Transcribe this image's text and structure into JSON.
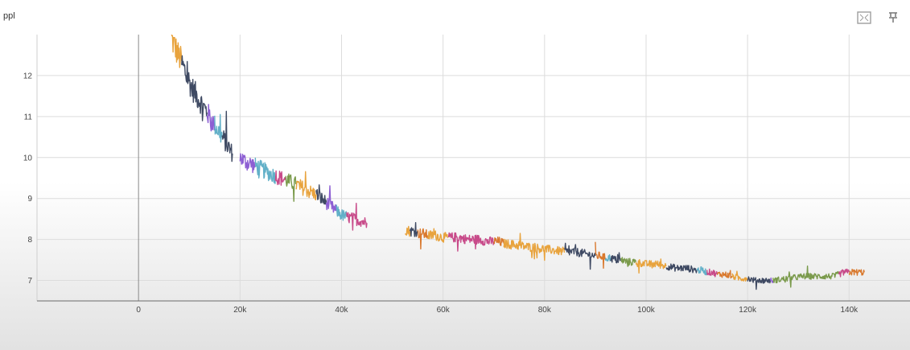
{
  "toolbar": {
    "fit_icon": "fit-domain-icon",
    "pin_icon": "pin-icon"
  },
  "chart_data": {
    "type": "line",
    "title": "ppl",
    "xlabel": "",
    "ylabel": "",
    "xlim": [
      -20000,
      152000
    ],
    "ylim": [
      6.5,
      13.0
    ],
    "grid": true,
    "x_ticks": [
      0,
      20000,
      40000,
      60000,
      80000,
      100000,
      120000,
      140000
    ],
    "x_tick_labels": [
      "0",
      "20k",
      "40k",
      "60k",
      "80k",
      "100k",
      "120k",
      "140k"
    ],
    "y_ticks": [
      7,
      8,
      9,
      10,
      11,
      12
    ],
    "y_tick_labels": [
      "7",
      "8",
      "9",
      "10",
      "11",
      "12"
    ],
    "series": [
      {
        "color": "#e8a33d",
        "x": [
          6500,
          7000,
          7500,
          8000,
          8500
        ],
        "y": [
          12.9,
          12.75,
          12.6,
          12.45,
          12.35
        ]
      },
      {
        "color": "#3f4a63",
        "x": [
          8500,
          9500,
          10500,
          11500,
          12500,
          13500
        ],
        "y": [
          12.3,
          12.0,
          11.7,
          11.5,
          11.3,
          11.1
        ]
      },
      {
        "color": "#8d5fd3",
        "x": [
          13500,
          14000,
          14500,
          15000
        ],
        "y": [
          11.1,
          11.0,
          10.9,
          10.8
        ]
      },
      {
        "color": "#62b0c8",
        "x": [
          15000,
          15500,
          16000,
          16500
        ],
        "y": [
          10.8,
          10.7,
          10.6,
          10.5
        ]
      },
      {
        "color": "#3f4a63",
        "x": [
          16500,
          17500,
          18500
        ],
        "y": [
          10.5,
          10.3,
          10.1
        ]
      },
      {
        "color": "#8d5fd3",
        "x": [
          20000,
          21000,
          22000,
          23000
        ],
        "y": [
          10.0,
          9.9,
          9.85,
          9.8
        ]
      },
      {
        "color": "#62b0c8",
        "x": [
          23000,
          24500,
          26000,
          27000
        ],
        "y": [
          9.8,
          9.7,
          9.6,
          9.55
        ]
      },
      {
        "color": "#c84b8a",
        "x": [
          27000,
          28000,
          29000
        ],
        "y": [
          9.55,
          9.5,
          9.45
        ]
      },
      {
        "color": "#7a9a4b",
        "x": [
          29000,
          30000,
          31000
        ],
        "y": [
          9.45,
          9.4,
          9.35
        ]
      },
      {
        "color": "#e8a33d",
        "x": [
          31000,
          32500,
          34000,
          35000
        ],
        "y": [
          9.35,
          9.25,
          9.15,
          9.1
        ]
      },
      {
        "color": "#3f4a63",
        "x": [
          35000,
          36000,
          37000
        ],
        "y": [
          9.1,
          9.0,
          8.9
        ]
      },
      {
        "color": "#8d5fd3",
        "x": [
          37000,
          38000,
          39000
        ],
        "y": [
          8.9,
          8.8,
          8.7
        ]
      },
      {
        "color": "#62b0c8",
        "x": [
          39000,
          40000,
          41000
        ],
        "y": [
          8.7,
          8.6,
          8.55
        ]
      },
      {
        "color": "#c84b8a",
        "x": [
          41000,
          42500,
          44000,
          45000
        ],
        "y": [
          8.55,
          8.5,
          8.45,
          8.4
        ]
      },
      {
        "color": "#e8a33d",
        "x": [
          52500,
          53500
        ],
        "y": [
          8.25,
          8.2
        ]
      },
      {
        "color": "#3f4a63",
        "x": [
          53500,
          54500,
          55000
        ],
        "y": [
          8.2,
          8.2,
          8.2
        ]
      },
      {
        "color": "#d9792e",
        "x": [
          55000,
          56000,
          57000
        ],
        "y": [
          8.15,
          8.15,
          8.1
        ]
      },
      {
        "color": "#e8a33d",
        "x": [
          57000,
          58500,
          60000,
          61000
        ],
        "y": [
          8.1,
          8.1,
          8.05,
          8.05
        ]
      },
      {
        "color": "#c84b8a",
        "x": [
          61000,
          63000,
          65000,
          67000,
          69000,
          70000
        ],
        "y": [
          8.05,
          8.05,
          8.0,
          8.0,
          7.95,
          7.95
        ]
      },
      {
        "color": "#d9792e",
        "x": [
          70000,
          71000,
          72000
        ],
        "y": [
          7.95,
          7.95,
          7.9
        ]
      },
      {
        "color": "#e8a33d",
        "x": [
          72000,
          75000,
          78000,
          81000,
          84000
        ],
        "y": [
          7.9,
          7.85,
          7.8,
          7.75,
          7.7
        ]
      },
      {
        "color": "#3f4a63",
        "x": [
          84000,
          86000,
          88000,
          90000
        ],
        "y": [
          7.7,
          7.7,
          7.65,
          7.6
        ]
      },
      {
        "color": "#d9792e",
        "x": [
          90000,
          91000,
          92000
        ],
        "y": [
          7.6,
          7.6,
          7.55
        ]
      },
      {
        "color": "#62b0c8",
        "x": [
          92000,
          93000
        ],
        "y": [
          7.55,
          7.55
        ]
      },
      {
        "color": "#3f4a63",
        "x": [
          93000,
          94000,
          95000
        ],
        "y": [
          7.55,
          7.5,
          7.5
        ]
      },
      {
        "color": "#7a9a4b",
        "x": [
          95000,
          96500,
          98000
        ],
        "y": [
          7.5,
          7.45,
          7.45
        ]
      },
      {
        "color": "#e8a33d",
        "x": [
          98000,
          100000,
          102000,
          104000
        ],
        "y": [
          7.45,
          7.4,
          7.4,
          7.35
        ]
      },
      {
        "color": "#3f4a63",
        "x": [
          104000,
          106000,
          108000,
          110000
        ],
        "y": [
          7.35,
          7.3,
          7.3,
          7.25
        ]
      },
      {
        "color": "#62b0c8",
        "x": [
          110000,
          111000,
          112000
        ],
        "y": [
          7.25,
          7.25,
          7.2
        ]
      },
      {
        "color": "#c84b8a",
        "x": [
          112000,
          113000,
          114000
        ],
        "y": [
          7.2,
          7.2,
          7.15
        ]
      },
      {
        "color": "#d9792e",
        "x": [
          114000,
          115500,
          117000
        ],
        "y": [
          7.15,
          7.15,
          7.1
        ]
      },
      {
        "color": "#e8a33d",
        "x": [
          117000,
          118500,
          120000
        ],
        "y": [
          7.1,
          7.05,
          7.05
        ]
      },
      {
        "color": "#3f4a63",
        "x": [
          120000,
          121500,
          123000,
          124500
        ],
        "y": [
          7.05,
          7.0,
          7.0,
          7.0
        ]
      },
      {
        "color": "#8d5fd3",
        "x": [
          124500,
          125000
        ],
        "y": [
          7.0,
          7.0
        ]
      },
      {
        "color": "#7a9a4b",
        "x": [
          125000,
          128000,
          131000,
          134000,
          137000,
          138000
        ],
        "y": [
          7.0,
          7.05,
          7.1,
          7.1,
          7.1,
          7.15
        ]
      },
      {
        "color": "#c84b8a",
        "x": [
          138000,
          139000,
          140000
        ],
        "y": [
          7.15,
          7.2,
          7.2
        ]
      },
      {
        "color": "#d9792e",
        "x": [
          140000,
          141500,
          143000
        ],
        "y": [
          7.2,
          7.2,
          7.2
        ]
      }
    ]
  }
}
